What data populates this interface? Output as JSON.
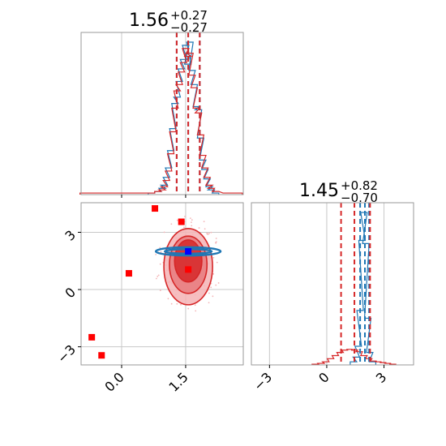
{
  "chart_data": [
    {
      "type": "histogram",
      "panel": "upper-left marginal (parameter 1)",
      "title": {
        "value": "1.56",
        "plus": "+0.27",
        "minus": "−0.27"
      },
      "xlim": [
        -0.95,
        2.85
      ],
      "x_ticks": [
        "0.0",
        "1.5"
      ],
      "grid": true,
      "series": [
        {
          "color": "#1f77b4",
          "bins": [
            [
              0.7,
              0.01
            ],
            [
              0.85,
              0.02
            ],
            [
              0.95,
              0.04
            ],
            [
              1.0,
              0.06
            ],
            [
              1.05,
              0.11
            ],
            [
              1.1,
              0.17
            ],
            [
              1.15,
              0.28
            ],
            [
              1.2,
              0.42
            ],
            [
              1.25,
              0.58
            ],
            [
              1.3,
              0.62
            ],
            [
              1.35,
              0.72
            ],
            [
              1.4,
              0.8
            ],
            [
              1.45,
              0.86
            ],
            [
              1.5,
              0.95
            ],
            [
              1.55,
              0.83
            ],
            [
              1.6,
              0.97
            ],
            [
              1.65,
              0.79
            ],
            [
              1.7,
              0.7
            ],
            [
              1.75,
              0.56
            ],
            [
              1.8,
              0.54
            ],
            [
              1.85,
              0.36
            ],
            [
              1.9,
              0.22
            ],
            [
              1.95,
              0.16
            ],
            [
              2.0,
              0.1
            ],
            [
              2.05,
              0.05
            ],
            [
              2.1,
              0.03
            ],
            [
              2.2,
              0.01
            ]
          ],
          "quantile_lines": [
            1.29,
            1.56,
            1.83
          ]
        },
        {
          "color": "#d62728",
          "bins": [
            [
              -0.9,
              0.01
            ],
            [
              0.7,
              0.01
            ],
            [
              0.85,
              0.02
            ],
            [
              0.95,
              0.03
            ],
            [
              1.0,
              0.05
            ],
            [
              1.05,
              0.09
            ],
            [
              1.1,
              0.15
            ],
            [
              1.15,
              0.26
            ],
            [
              1.2,
              0.4
            ],
            [
              1.25,
              0.55
            ],
            [
              1.3,
              0.66
            ],
            [
              1.35,
              0.7
            ],
            [
              1.4,
              0.78
            ],
            [
              1.45,
              0.84
            ],
            [
              1.5,
              0.93
            ],
            [
              1.55,
              0.88
            ],
            [
              1.6,
              0.9
            ],
            [
              1.65,
              0.76
            ],
            [
              1.7,
              0.68
            ],
            [
              1.75,
              0.55
            ],
            [
              1.8,
              0.52
            ],
            [
              1.85,
              0.38
            ],
            [
              1.9,
              0.25
            ],
            [
              1.95,
              0.17
            ],
            [
              2.0,
              0.11
            ],
            [
              2.05,
              0.06
            ],
            [
              2.1,
              0.04
            ],
            [
              2.2,
              0.02
            ],
            [
              2.45,
              0.01
            ],
            [
              2.75,
              0.01
            ]
          ],
          "quantile_lines": [
            1.29,
            1.56,
            1.83
          ]
        }
      ]
    },
    {
      "type": "scatter",
      "panel": "lower-left joint (parameter 1 vs parameter 2)",
      "xlim": [
        -0.95,
        2.85
      ],
      "ylim": [
        -3.95,
        4.55
      ],
      "x_ticks": [
        "0.0",
        "1.5"
      ],
      "y_ticks": [
        "−3",
        "0",
        "3"
      ],
      "grid": true,
      "contours": [
        {
          "color": "#d62728",
          "center": [
            1.56,
            1.2
          ],
          "rx": 0.57,
          "ry": 2.0,
          "fill": "#f5b3b5"
        },
        {
          "color": "#d62728",
          "center": [
            1.56,
            1.3
          ],
          "rx": 0.44,
          "ry": 1.5,
          "fill": "#e87a7d"
        },
        {
          "color": "#d62728",
          "center": [
            1.56,
            1.5
          ],
          "rx": 0.32,
          "ry": 1.1,
          "fill": "#d62728"
        },
        {
          "color": "#1f77b4",
          "center": [
            1.56,
            2.0
          ],
          "rx": 0.76,
          "ry": 0.22,
          "fill": "none"
        },
        {
          "color": "#1f77b4",
          "center": [
            1.56,
            2.0
          ],
          "rx": 0.55,
          "ry": 0.12,
          "fill": "none"
        }
      ],
      "markers": [
        {
          "x": 1.56,
          "y": 2.0,
          "color": "#0000ff"
        },
        {
          "x": 0.78,
          "y": 4.25,
          "color": "#ff0000"
        },
        {
          "x": 1.4,
          "y": 3.55,
          "color": "#ff0000"
        },
        {
          "x": 0.17,
          "y": 0.85,
          "color": "#ff0000"
        },
        {
          "x": -0.7,
          "y": -2.5,
          "color": "#ff0000"
        },
        {
          "x": -0.47,
          "y": -3.45,
          "color": "#ff0000"
        },
        {
          "x": 1.56,
          "y": 1.05,
          "color": "#ff0000"
        }
      ]
    },
    {
      "type": "histogram",
      "panel": "lower-right marginal (parameter 2)",
      "title": {
        "value": "1.45",
        "plus": "+0.82",
        "minus": "−0.70"
      },
      "xlim": [
        -3.95,
        4.55
      ],
      "x_ticks": [
        "−3",
        "0",
        "3"
      ],
      "grid": true,
      "series": [
        {
          "color": "#1f77b4",
          "bins": [
            [
              1.4,
              0.02
            ],
            [
              1.55,
              0.05
            ],
            [
              1.65,
              0.12
            ],
            [
              1.75,
              0.35
            ],
            [
              1.85,
              0.8
            ],
            [
              1.95,
              0.98
            ],
            [
              2.05,
              0.78
            ],
            [
              2.15,
              0.3
            ],
            [
              2.25,
              0.08
            ],
            [
              2.4,
              0.02
            ]
          ],
          "quantile_lines": [
            1.75,
            2.0,
            2.22
          ]
        },
        {
          "color": "#d62728",
          "bins": [
            [
              -0.6,
              0.005
            ],
            [
              -0.3,
              0.01
            ],
            [
              -0.05,
              0.02
            ],
            [
              0.2,
              0.04
            ],
            [
              0.45,
              0.06
            ],
            [
              0.7,
              0.08
            ],
            [
              0.95,
              0.095
            ],
            [
              1.2,
              0.1
            ],
            [
              1.45,
              0.095
            ],
            [
              1.7,
              0.085
            ],
            [
              1.95,
              0.06
            ],
            [
              2.2,
              0.04
            ],
            [
              2.45,
              0.025
            ],
            [
              2.7,
              0.02
            ],
            [
              2.95,
              0.015
            ],
            [
              3.2,
              0.01
            ],
            [
              3.45,
              0.005
            ]
          ],
          "quantile_lines": [
            0.75,
            1.45,
            2.27
          ]
        }
      ]
    }
  ]
}
